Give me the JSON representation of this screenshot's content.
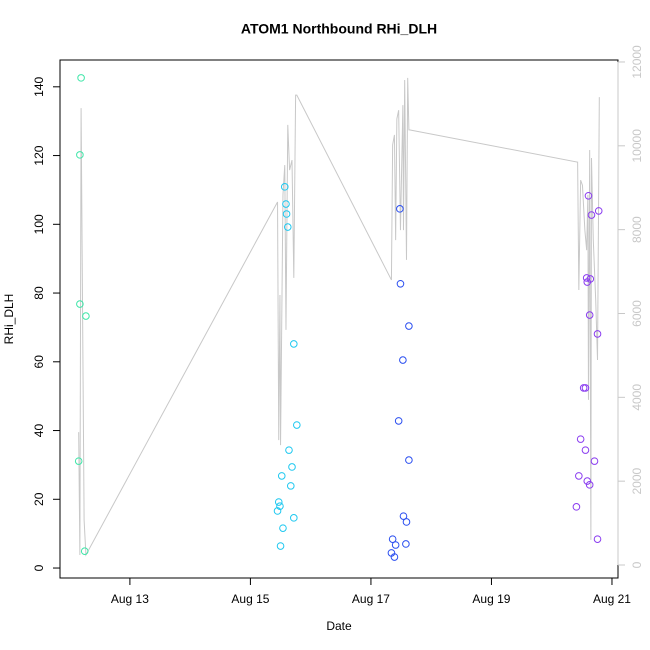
{
  "chart_data": {
    "type": "scatter",
    "title": "ATOM1 Northbound RHi_DLH",
    "xlabel": "Date",
    "ylabel": "RHi_DLH",
    "xlim": [
      11.84,
      21.1
    ],
    "ylim": [
      -2.9,
      147.8
    ],
    "y2lim": [
      -310,
      12047
    ],
    "xticks": [
      {
        "value": 13,
        "label": "Aug 13"
      },
      {
        "value": 15,
        "label": "Aug 15"
      },
      {
        "value": 17,
        "label": "Aug 17"
      },
      {
        "value": 19,
        "label": "Aug 19"
      },
      {
        "value": 21,
        "label": "Aug 21"
      }
    ],
    "yticks": [
      0,
      20,
      40,
      60,
      80,
      100,
      120,
      140
    ],
    "y2ticks": [
      0,
      2000,
      4000,
      6000,
      8000,
      10000,
      12000
    ],
    "y2color": "#c8c8c8",
    "series": [
      {
        "style": "line",
        "axis": "y2",
        "color": "#c8c8c8",
        "x": [
          12.15,
          12.17,
          12.19,
          12.24,
          12.27,
          15.45,
          15.47,
          15.49,
          15.5,
          15.54,
          15.57,
          15.59,
          15.62,
          15.65,
          15.69,
          15.72,
          15.75,
          15.77,
          17.34,
          17.36,
          17.39,
          17.41,
          17.43,
          17.46,
          17.49,
          17.53,
          17.54,
          17.56,
          17.59,
          17.61,
          17.63,
          17.64,
          20.43,
          20.45,
          20.48,
          20.51,
          20.55,
          20.58,
          20.6,
          20.61,
          20.63,
          20.65,
          20.66,
          20.69,
          20.73,
          20.76,
          20.79
        ],
        "values": [
          3170,
          240,
          10900,
          1070,
          240,
          8660,
          2980,
          6440,
          2860,
          8830,
          9540,
          5610,
          10500,
          9420,
          9660,
          6850,
          11210,
          11210,
          6800,
          10020,
          10260,
          7750,
          10640,
          10850,
          7990,
          10970,
          7990,
          11570,
          7280,
          11620,
          10380,
          10380,
          9610,
          6560,
          9180,
          9060,
          7990,
          7510,
          8830,
          3940,
          9900,
          600,
          9710,
          7750,
          6320,
          4890,
          11160
        ]
      },
      {
        "style": "points",
        "color": "#3ee6a8",
        "x": [
          12.19,
          12.17,
          12.17,
          12.27,
          12.15,
          12.25
        ],
        "values": [
          142.6,
          120.2,
          76.8,
          73.3,
          31.1,
          4.9
        ]
      },
      {
        "style": "points",
        "color": "#1ec8f0",
        "x": [
          15.57,
          15.59,
          15.6,
          15.62,
          15.72,
          15.77,
          15.64,
          15.69,
          15.52,
          15.67,
          15.47,
          15.49,
          15.45,
          15.72,
          15.54,
          15.5
        ],
        "values": [
          110.9,
          105.9,
          103.0,
          99.2,
          65.2,
          41.6,
          34.3,
          29.4,
          26.8,
          23.9,
          19.2,
          18.0,
          16.6,
          14.6,
          11.6,
          6.4
        ]
      },
      {
        "style": "points",
        "color": "#2a4ef0",
        "x": [
          17.48,
          17.49,
          17.63,
          17.53,
          17.46,
          17.63,
          17.54,
          17.59,
          17.36,
          17.41,
          17.58,
          17.34,
          17.39
        ],
        "values": [
          104.5,
          82.7,
          70.4,
          60.5,
          42.8,
          31.4,
          15.1,
          13.4,
          8.4,
          6.7,
          7.0,
          4.4,
          3.2
        ]
      },
      {
        "style": "points",
        "color": "#8a3cf0",
        "x": [
          20.61,
          20.78,
          20.66,
          20.58,
          20.64,
          20.59,
          20.63,
          20.76,
          20.53,
          20.56,
          20.48,
          20.56,
          20.71,
          20.45,
          20.59,
          20.63,
          20.41,
          20.76
        ],
        "values": [
          108.3,
          103.9,
          102.7,
          84.4,
          84.1,
          83.2,
          73.6,
          68.1,
          52.4,
          52.4,
          37.5,
          34.3,
          31.1,
          26.8,
          25.3,
          24.2,
          17.8,
          8.4
        ]
      }
    ]
  }
}
